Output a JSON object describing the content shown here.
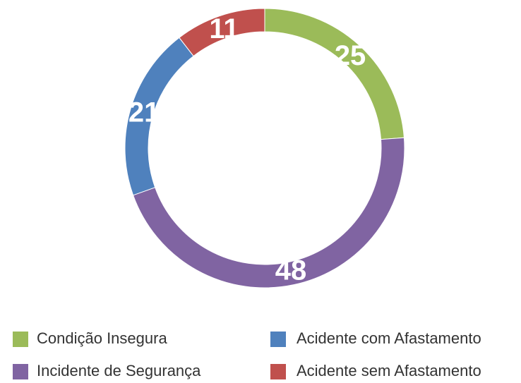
{
  "chart_data": {
    "type": "donut",
    "categories": [
      "Condição Insegura",
      "Incidente de Segurança",
      "Acidente com Afastamento",
      "Acidente sem Afastamento"
    ],
    "values": [
      25,
      48,
      21,
      11
    ],
    "colors": [
      "#9bbb59",
      "#8064a2",
      "#4f81bd",
      "#c0504d"
    ],
    "legend": "bottom"
  }
}
